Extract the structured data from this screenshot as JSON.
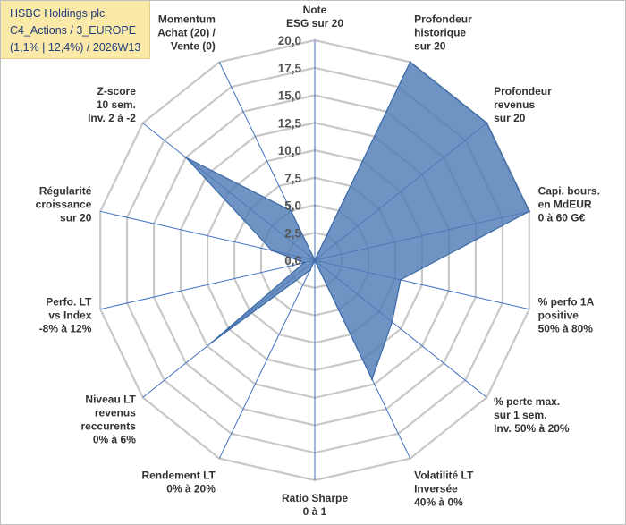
{
  "title_box": {
    "line1": "HSBC Holdings plc",
    "line2": "C4_Actions / 3_EUROPE",
    "line3": "(1,1% | 12,4%) / 2026W13",
    "background": "#fbe9a9"
  },
  "chart_data": {
    "type": "radar",
    "title": "HSBC Holdings plc",
    "range": [
      0,
      20
    ],
    "ticks": [
      "0,0",
      "2,5",
      "5,0",
      "7,5",
      "10,0",
      "12,5",
      "15,0",
      "17,5",
      "20,0"
    ],
    "axes": [
      {
        "label": [
          "Note",
          "ESG sur 20"
        ],
        "value": 0
      },
      {
        "label": [
          "Profondeur",
          "historique",
          "sur 20"
        ],
        "value": 20
      },
      {
        "label": [
          "Profondeur",
          "revenus",
          "sur 20"
        ],
        "value": 20
      },
      {
        "label": [
          "Capi. bours.",
          "en MdEUR",
          "0 à 60 G€"
        ],
        "value": 20
      },
      {
        "label": [
          "% perfo 1A",
          "positive",
          "50% à 80%"
        ],
        "value": 8
      },
      {
        "label": [
          "% perte max.",
          "sur 1 sem.",
          "Inv. 50% à 20%"
        ],
        "value": 9
      },
      {
        "label": [
          "Volatilité LT",
          "Inversée",
          "40% à 0%"
        ],
        "value": 12
      },
      {
        "label": [
          "Ratio Sharpe",
          "0 à 1"
        ],
        "value": 0
      },
      {
        "label": [
          "Rendement LT",
          "0% à 20%"
        ],
        "value": 1
      },
      {
        "label": [
          "Niveau LT",
          "revenus",
          "reccurents",
          "0% à 6%"
        ],
        "value": 12
      },
      {
        "label": [
          "Perfo. LT",
          "vs Index",
          "-8% à 12%"
        ],
        "value": 1
      },
      {
        "label": [
          "Régularité",
          "croissance",
          "sur 20"
        ],
        "value": 4
      },
      {
        "label": [
          "Z-score",
          "10 sem.",
          "Inv. 2 à -2"
        ],
        "value": 15
      },
      {
        "label": [
          "Momentum",
          "Achat (20) /",
          "Vente (0)"
        ],
        "value": 5
      }
    ],
    "series_color": "#4f7bb5",
    "grid_color": "#c8c8c8",
    "axis_color": "#4472c4"
  }
}
